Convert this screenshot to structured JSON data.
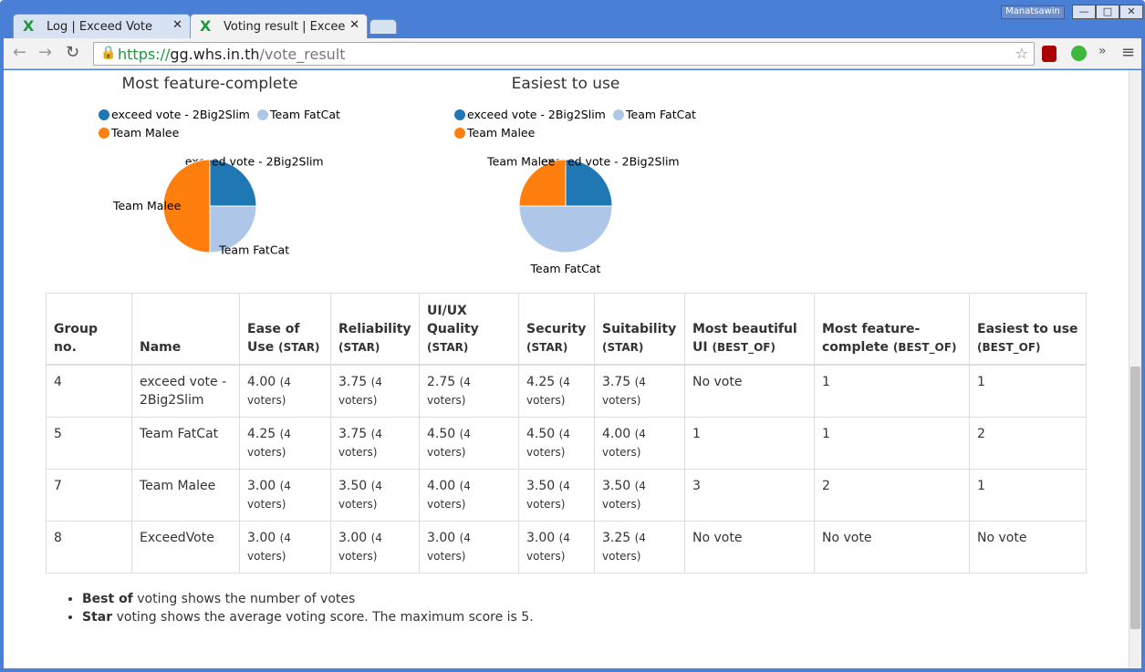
{
  "browser": {
    "tabs": [
      {
        "title": "Log | Exceed Vote"
      },
      {
        "title": "Voting result | Excee"
      }
    ],
    "user": "Manatsawin",
    "url": {
      "scheme": "https://",
      "host": "gg.whs.in.th",
      "path": "/vote_result"
    }
  },
  "chart_data": [
    {
      "type": "pie",
      "title": "Most feature-complete",
      "categories": [
        "exceed vote - 2Big2Slim",
        "Team FatCat",
        "Team Malee"
      ],
      "values": [
        1,
        1,
        2
      ],
      "colors": [
        "#1f77b4",
        "#aec7e8",
        "#ff7f0e"
      ]
    },
    {
      "type": "pie",
      "title": "Easiest to use",
      "categories": [
        "exceed vote - 2Big2Slim",
        "Team FatCat",
        "Team Malee"
      ],
      "values": [
        1,
        2,
        1
      ],
      "colors": [
        "#1f77b4",
        "#aec7e8",
        "#ff7f0e"
      ]
    }
  ],
  "table": {
    "header": [
      {
        "label": "Group no."
      },
      {
        "label": "Name"
      },
      {
        "label": "Ease of Use",
        "unit": "(STAR)"
      },
      {
        "label": "Reliability",
        "unit": "(STAR)"
      },
      {
        "label": "UI/UX Quality",
        "unit": "(STAR)"
      },
      {
        "label": "Security",
        "unit": "(STAR)"
      },
      {
        "label": "Suitability",
        "unit": "(STAR)"
      },
      {
        "label": "Most beautiful UI",
        "unit": "(BEST_OF)"
      },
      {
        "label": "Most feature-complete",
        "unit": "(BEST_OF)"
      },
      {
        "label": "Easiest to use",
        "unit": "(BEST_OF)"
      }
    ],
    "rows": [
      [
        "4",
        "exceed vote - 2Big2Slim",
        {
          "value": "4.00",
          "note": "(4 voters)"
        },
        {
          "value": "3.75",
          "note": "(4 voters)"
        },
        {
          "value": "2.75",
          "note": "(4 voters)"
        },
        {
          "value": "4.25",
          "note": "(4 voters)"
        },
        {
          "value": "3.75",
          "note": "(4 voters)"
        },
        "No vote",
        "1",
        "1"
      ],
      [
        "5",
        "Team FatCat",
        {
          "value": "4.25",
          "note": "(4 voters)"
        },
        {
          "value": "3.75",
          "note": "(4 voters)"
        },
        {
          "value": "4.50",
          "note": "(4 voters)"
        },
        {
          "value": "4.50",
          "note": "(4 voters)"
        },
        {
          "value": "4.00",
          "note": "(4 voters)"
        },
        "1",
        "1",
        "2"
      ],
      [
        "7",
        "Team Malee",
        {
          "value": "3.00",
          "note": "(4 voters)"
        },
        {
          "value": "3.50",
          "note": "(4 voters)"
        },
        {
          "value": "4.00",
          "note": "(4 voters)"
        },
        {
          "value": "3.50",
          "note": "(4 voters)"
        },
        {
          "value": "3.50",
          "note": "(4 voters)"
        },
        "3",
        "2",
        "1"
      ],
      [
        "8",
        "ExceedVote",
        {
          "value": "3.00",
          "note": "(4 voters)"
        },
        {
          "value": "3.00",
          "note": "(4 voters)"
        },
        {
          "value": "3.00",
          "note": "(4 voters)"
        },
        {
          "value": "3.00",
          "note": "(4 voters)"
        },
        {
          "value": "3.25",
          "note": "(4 voters)"
        },
        "No vote",
        "No vote",
        "No vote"
      ]
    ]
  },
  "notes": [
    {
      "bold": "Best of",
      "text": "voting shows the number of votes"
    },
    {
      "bold": "Star",
      "text": "voting shows the average voting score. The maximum score is 5."
    }
  ]
}
